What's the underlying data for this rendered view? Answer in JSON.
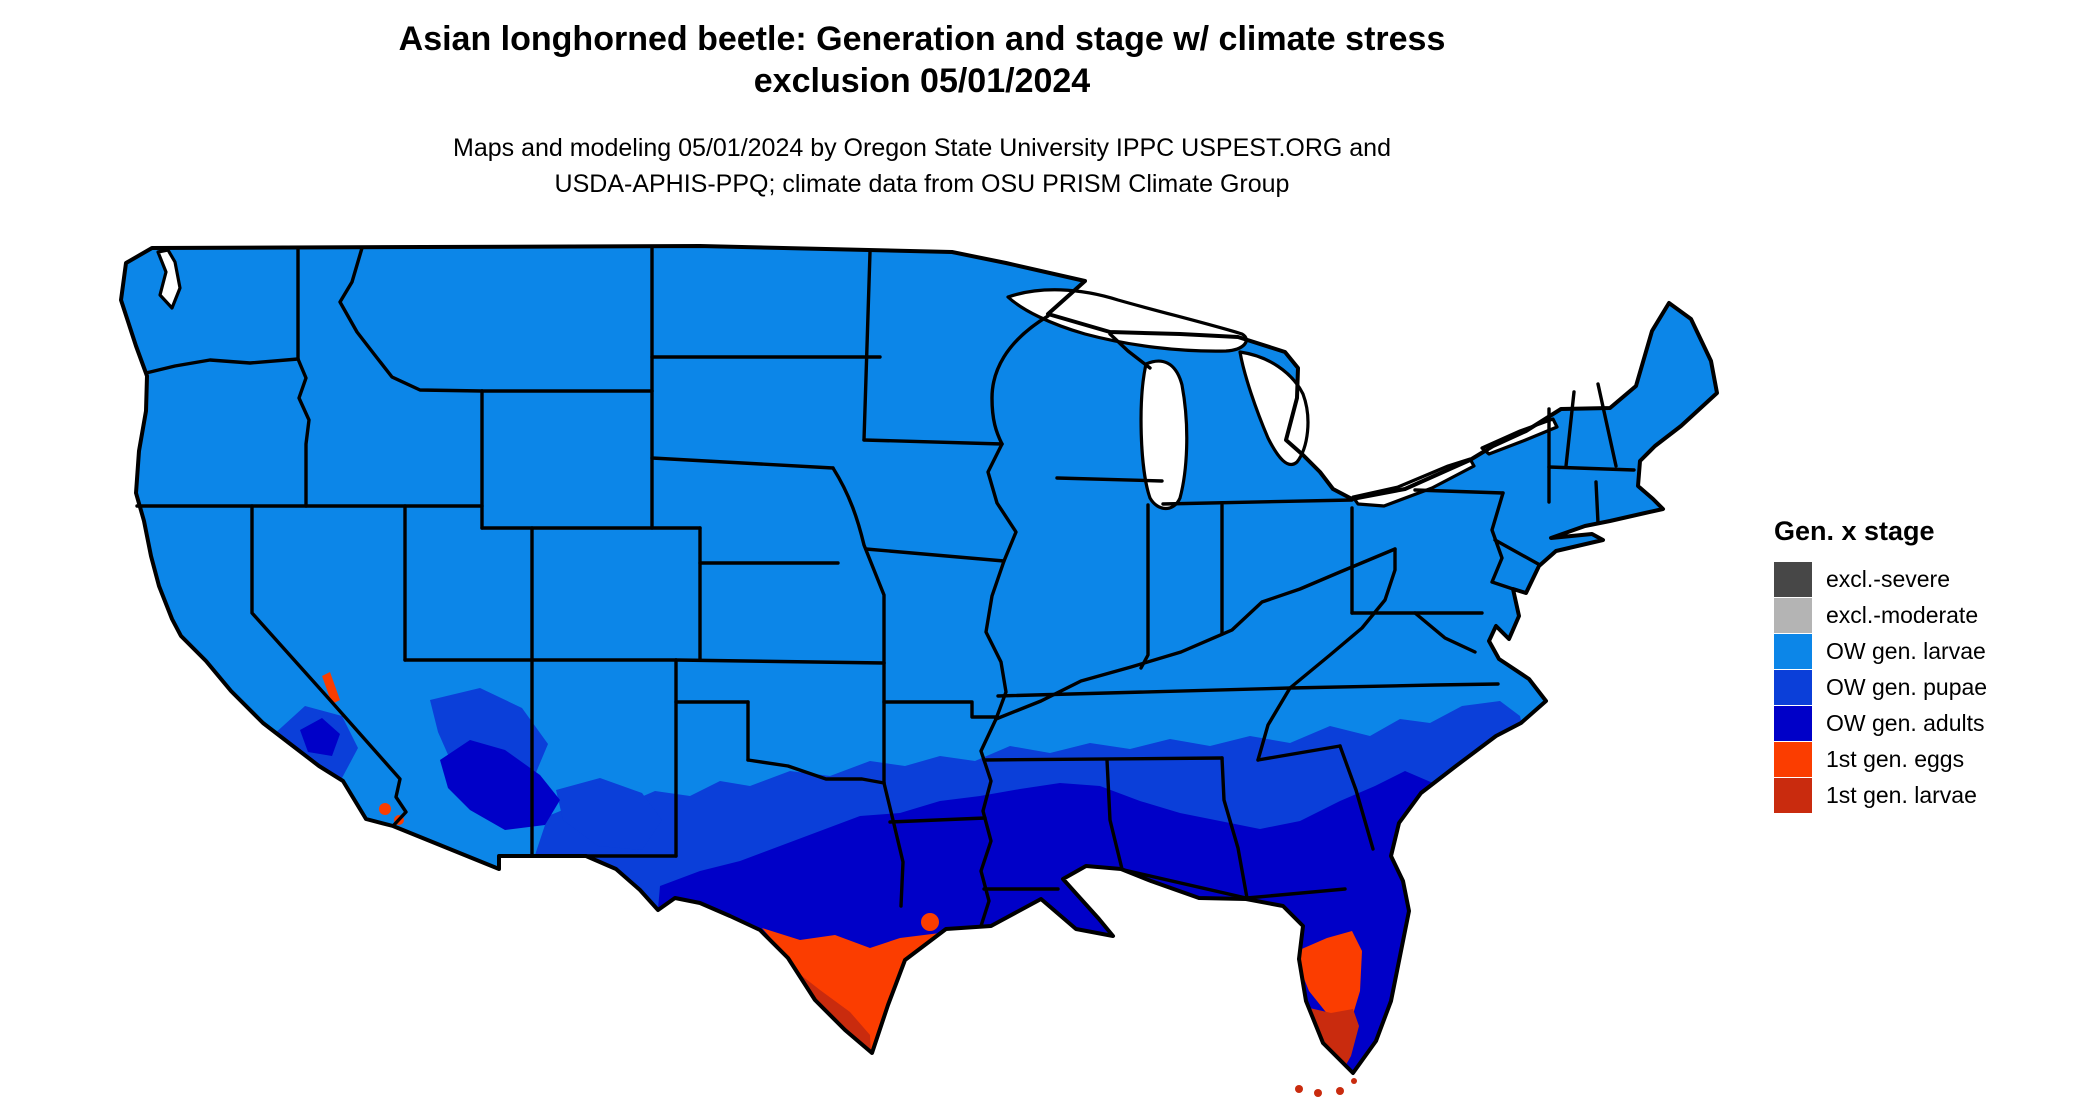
{
  "header": {
    "title_line1": "Asian longhorned beetle: Generation and stage w/ climate stress",
    "title_line2": "exclusion 05/01/2024",
    "subtitle_line1": "Maps and modeling 05/01/2024 by Oregon State University IPPC USPEST.ORG and",
    "subtitle_line2": "USDA-APHIS-PPQ; climate data from OSU PRISM Climate Group"
  },
  "legend": {
    "title": "Gen. x stage",
    "items": [
      {
        "label": "excl.-severe",
        "color": "#474747"
      },
      {
        "label": "excl.-moderate",
        "color": "#b4b4b4"
      },
      {
        "label": "OW gen. larvae",
        "color": "#0c86e8"
      },
      {
        "label": "OW gen. pupae",
        "color": "#0b3fd9"
      },
      {
        "label": "OW gen. adults",
        "color": "#0000c8"
      },
      {
        "label": "1st gen. eggs",
        "color": "#fb3d00"
      },
      {
        "label": "1st gen. larvae",
        "color": "#c92b0e"
      }
    ]
  },
  "map": {
    "background": "#ffffff",
    "border_color": "#000000"
  }
}
